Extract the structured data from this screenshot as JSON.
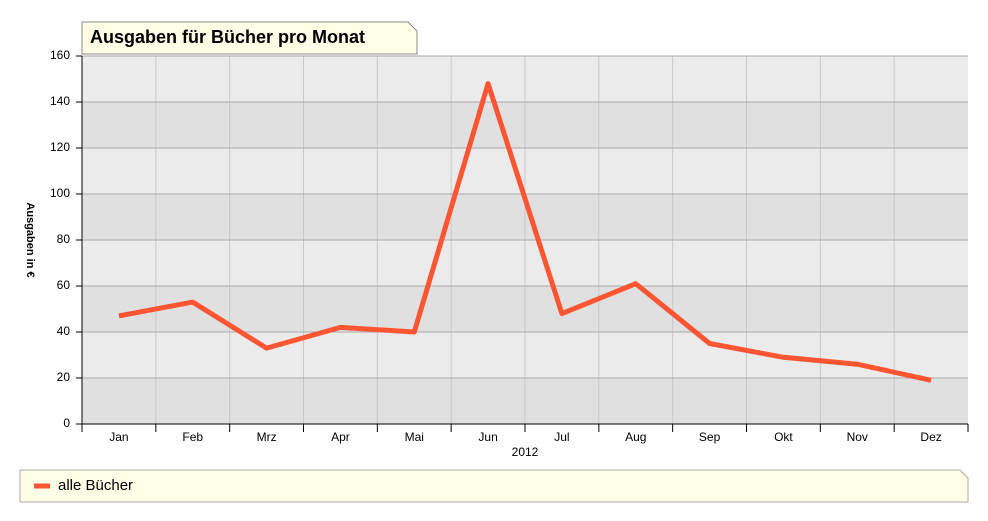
{
  "chart_data": {
    "type": "line",
    "title": "Ausgaben für Bücher pro Monat",
    "ylabel": "Ausgaben in €",
    "xlabel": "2012",
    "categories": [
      "Jan",
      "Feb",
      "Mrz",
      "Apr",
      "Mai",
      "Jun",
      "Jul",
      "Aug",
      "Sep",
      "Okt",
      "Nov",
      "Dez"
    ],
    "series": [
      {
        "name": "alle Bücher",
        "color": "#ff5533",
        "values": [
          47,
          53,
          33,
          42,
          40,
          148,
          48,
          61,
          35,
          29,
          26,
          19
        ]
      }
    ],
    "ylim": [
      0,
      160
    ],
    "yticks": [
      0,
      20,
      40,
      60,
      80,
      100,
      120,
      140,
      160
    ],
    "grid": true
  }
}
